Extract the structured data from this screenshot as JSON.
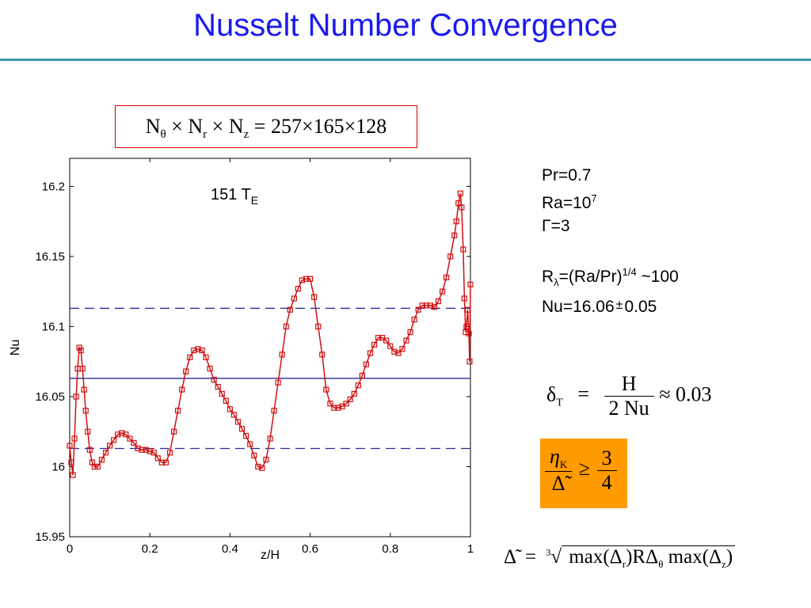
{
  "slide": {
    "title": "Nusselt Number Convergence"
  },
  "grid_box": {
    "text_N": "N",
    "sub_theta": "θ",
    "times": "×",
    "sub_r": "r",
    "sub_z": "z",
    "equals": "=",
    "resolution": "257×165×128"
  },
  "params": {
    "pr": "Pr=0.7",
    "ra_base": "Ra=10",
    "ra_exp": "7",
    "gamma": "Γ=3",
    "r_lambda_prefix": "R",
    "r_lambda_sub": "λ",
    "r_lambda_mid": "=(Ra/Pr)",
    "r_lambda_exp": "1/4",
    "r_lambda_suffix": " ~100",
    "nu_value": "Nu=16.06",
    "nu_pm": "±",
    "nu_err": "0.05"
  },
  "delta_eq": {
    "lhs": "δ",
    "lhs_sub": "T",
    "eq": "=",
    "num": "H",
    "den": "2 Nu",
    "approx": "≈ 0.03"
  },
  "kolm_eq": {
    "eta": "η",
    "eta_sub": "K",
    "delta_tilde": "Δ̃",
    "geq": "≥",
    "num": "3",
    "den": "4"
  },
  "filter_eq": {
    "lhs": "Δ̃",
    "eq": "=",
    "root_index": "3",
    "max1": "max",
    "delta_r": "Δ",
    "sub_r": "r",
    "r_delta": "RΔ",
    "sub_theta": "θ",
    "max2": "max",
    "delta_z": "Δ",
    "sub_z": "z"
  },
  "chart_data": {
    "type": "line",
    "xlabel": "z/H",
    "ylabel": "Nu",
    "xlim": [
      0,
      1
    ],
    "ylim": [
      15.95,
      16.22
    ],
    "xticks": [
      0,
      0.2,
      0.4,
      0.6,
      0.8,
      1
    ],
    "xtick_labels": [
      "0",
      "0.2",
      "0.4",
      "0.6",
      "0.8",
      "1"
    ],
    "yticks": [
      15.95,
      16,
      16.05,
      16.1,
      16.15,
      16.2
    ],
    "ytick_labels": [
      "15.95",
      "16",
      "16.05",
      "16.1",
      "16.15",
      "16.2"
    ],
    "annotation_base": "151 T",
    "annotation_sub": "E",
    "grid": false,
    "hlines": [
      {
        "y": 16.063,
        "style": "solid",
        "color": "#2a2a9a"
      },
      {
        "y": 16.113,
        "style": "dashed",
        "color": "#2a2a9a"
      },
      {
        "y": 16.013,
        "style": "dashed",
        "color": "#2a2a9a"
      }
    ],
    "series": [
      {
        "color": "#d01010",
        "marker": "square",
        "points": [
          [
            0.0,
            16.015
          ],
          [
            0.004,
            16.003
          ],
          [
            0.008,
            15.994
          ],
          [
            0.012,
            16.02
          ],
          [
            0.016,
            16.05
          ],
          [
            0.02,
            16.07
          ],
          [
            0.024,
            16.085
          ],
          [
            0.028,
            16.083
          ],
          [
            0.032,
            16.07
          ],
          [
            0.036,
            16.055
          ],
          [
            0.04,
            16.04
          ],
          [
            0.045,
            16.025
          ],
          [
            0.05,
            16.012
          ],
          [
            0.056,
            16.003
          ],
          [
            0.062,
            16.0
          ],
          [
            0.07,
            16.0
          ],
          [
            0.08,
            16.005
          ],
          [
            0.09,
            16.01
          ],
          [
            0.1,
            16.015
          ],
          [
            0.11,
            16.019
          ],
          [
            0.12,
            16.023
          ],
          [
            0.13,
            16.024
          ],
          [
            0.14,
            16.023
          ],
          [
            0.15,
            16.02
          ],
          [
            0.16,
            16.017
          ],
          [
            0.17,
            16.013
          ],
          [
            0.18,
            16.012
          ],
          [
            0.19,
            16.012
          ],
          [
            0.2,
            16.011
          ],
          [
            0.21,
            16.01
          ],
          [
            0.22,
            16.006
          ],
          [
            0.23,
            16.003
          ],
          [
            0.24,
            16.003
          ],
          [
            0.25,
            16.01
          ],
          [
            0.26,
            16.025
          ],
          [
            0.27,
            16.04
          ],
          [
            0.28,
            16.055
          ],
          [
            0.29,
            16.068
          ],
          [
            0.3,
            16.078
          ],
          [
            0.31,
            16.083
          ],
          [
            0.32,
            16.084
          ],
          [
            0.33,
            16.083
          ],
          [
            0.34,
            16.078
          ],
          [
            0.35,
            16.07
          ],
          [
            0.36,
            16.062
          ],
          [
            0.37,
            16.057
          ],
          [
            0.38,
            16.052
          ],
          [
            0.39,
            16.047
          ],
          [
            0.4,
            16.041
          ],
          [
            0.41,
            16.037
          ],
          [
            0.42,
            16.032
          ],
          [
            0.43,
            16.027
          ],
          [
            0.44,
            16.022
          ],
          [
            0.45,
            16.016
          ],
          [
            0.46,
            16.008
          ],
          [
            0.47,
            16.0
          ],
          [
            0.48,
            15.999
          ],
          [
            0.49,
            16.005
          ],
          [
            0.5,
            16.02
          ],
          [
            0.51,
            16.04
          ],
          [
            0.52,
            16.06
          ],
          [
            0.53,
            16.08
          ],
          [
            0.54,
            16.1
          ],
          [
            0.55,
            16.112
          ],
          [
            0.56,
            16.12
          ],
          [
            0.57,
            16.127
          ],
          [
            0.58,
            16.133
          ],
          [
            0.59,
            16.134
          ],
          [
            0.6,
            16.134
          ],
          [
            0.61,
            16.121
          ],
          [
            0.62,
            16.1
          ],
          [
            0.63,
            16.08
          ],
          [
            0.64,
            16.055
          ],
          [
            0.65,
            16.045
          ],
          [
            0.66,
            16.042
          ],
          [
            0.67,
            16.042
          ],
          [
            0.68,
            16.043
          ],
          [
            0.69,
            16.045
          ],
          [
            0.7,
            16.048
          ],
          [
            0.71,
            16.052
          ],
          [
            0.72,
            16.058
          ],
          [
            0.73,
            16.065
          ],
          [
            0.74,
            16.073
          ],
          [
            0.75,
            16.081
          ],
          [
            0.76,
            16.087
          ],
          [
            0.77,
            16.092
          ],
          [
            0.78,
            16.092
          ],
          [
            0.79,
            16.09
          ],
          [
            0.8,
            16.086
          ],
          [
            0.81,
            16.082
          ],
          [
            0.82,
            16.081
          ],
          [
            0.83,
            16.084
          ],
          [
            0.84,
            16.09
          ],
          [
            0.85,
            16.096
          ],
          [
            0.86,
            16.105
          ],
          [
            0.87,
            16.112
          ],
          [
            0.88,
            16.115
          ],
          [
            0.89,
            16.115
          ],
          [
            0.9,
            16.115
          ],
          [
            0.91,
            16.114
          ],
          [
            0.92,
            16.118
          ],
          [
            0.93,
            16.125
          ],
          [
            0.94,
            16.135
          ],
          [
            0.95,
            16.15
          ],
          [
            0.96,
            16.165
          ],
          [
            0.965,
            16.175
          ],
          [
            0.97,
            16.188
          ],
          [
            0.975,
            16.195
          ],
          [
            0.978,
            16.185
          ],
          [
            0.982,
            16.155
          ],
          [
            0.985,
            16.12
          ],
          [
            0.988,
            16.096
          ],
          [
            0.99,
            16.1
          ],
          [
            0.993,
            16.112
          ],
          [
            0.996,
            16.095
          ],
          [
            0.998,
            16.075
          ],
          [
            1.0,
            16.13
          ]
        ]
      }
    ]
  }
}
